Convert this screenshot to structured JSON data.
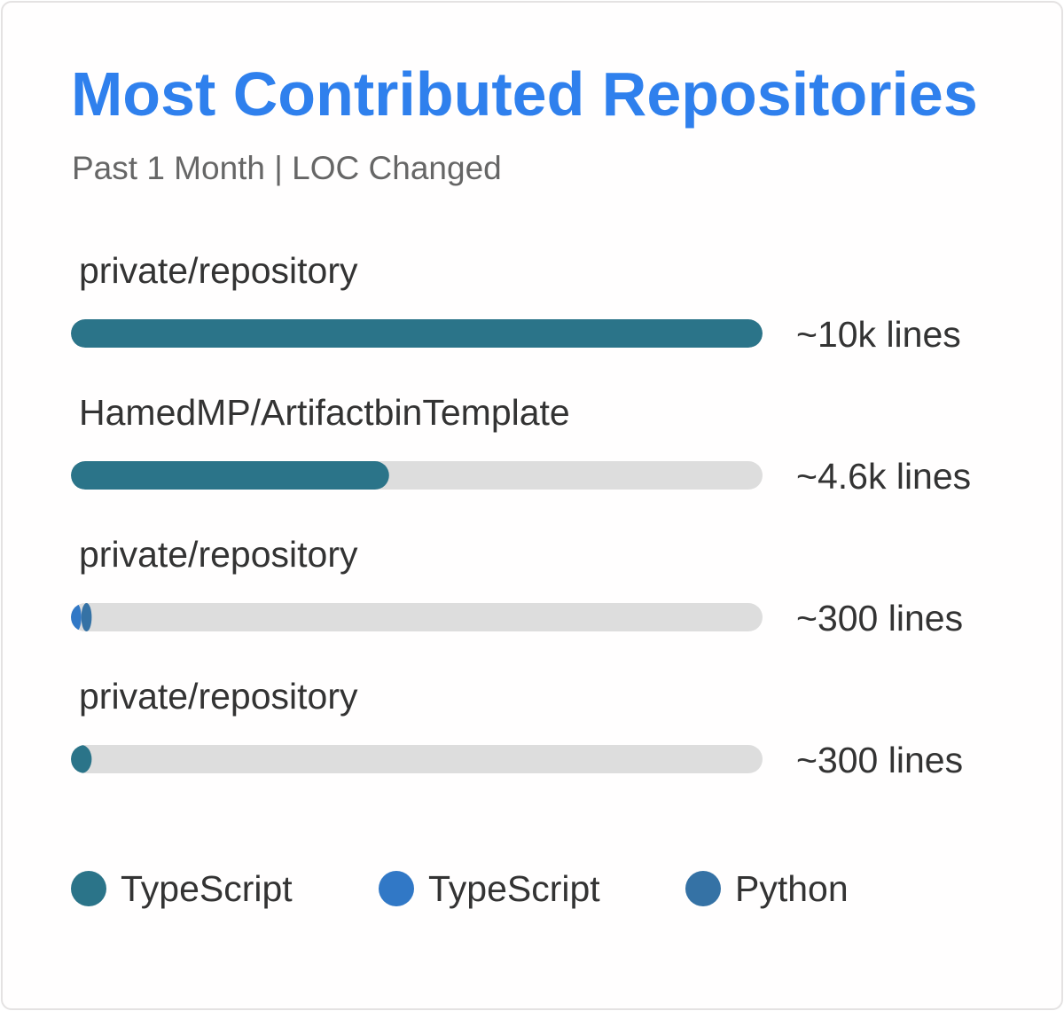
{
  "header": {
    "title": "Most Contributed Repositories",
    "subtitle": "Past 1 Month | LOC Changed"
  },
  "colors": {
    "title": "#2f80ed",
    "track": "#dddddd",
    "typescript_1": "#2b7489",
    "typescript_2": "#3178c6",
    "python": "#3572a5"
  },
  "legend": [
    {
      "label": "TypeScript",
      "color": "#2b7489"
    },
    {
      "label": "TypeScript",
      "color": "#3178c6"
    },
    {
      "label": "Python",
      "color": "#3572a5"
    }
  ],
  "chart_data": {
    "type": "bar",
    "orientation": "horizontal",
    "title": "Most Contributed Repositories",
    "subtitle": "Past 1 Month | LOC Changed",
    "max_value": 10000,
    "categories": [
      "private/repository",
      "HamedMP/ArtifactbinTemplate",
      "private/repository",
      "private/repository"
    ],
    "value_labels": [
      "~10k lines",
      "~4.6k lines",
      "~300 lines",
      "~300 lines"
    ],
    "bars": [
      {
        "segments": [
          {
            "language": "TypeScript",
            "color": "#2b7489",
            "value": 10000
          }
        ]
      },
      {
        "segments": [
          {
            "language": "TypeScript",
            "color": "#2b7489",
            "value": 4600
          }
        ]
      },
      {
        "segments": [
          {
            "language": "TypeScript",
            "color": "#3178c6",
            "value": 150
          },
          {
            "language": "Python",
            "color": "#3572a5",
            "value": 150
          }
        ]
      },
      {
        "segments": [
          {
            "language": "TypeScript",
            "color": "#2b7489",
            "value": 300
          }
        ]
      }
    ]
  }
}
